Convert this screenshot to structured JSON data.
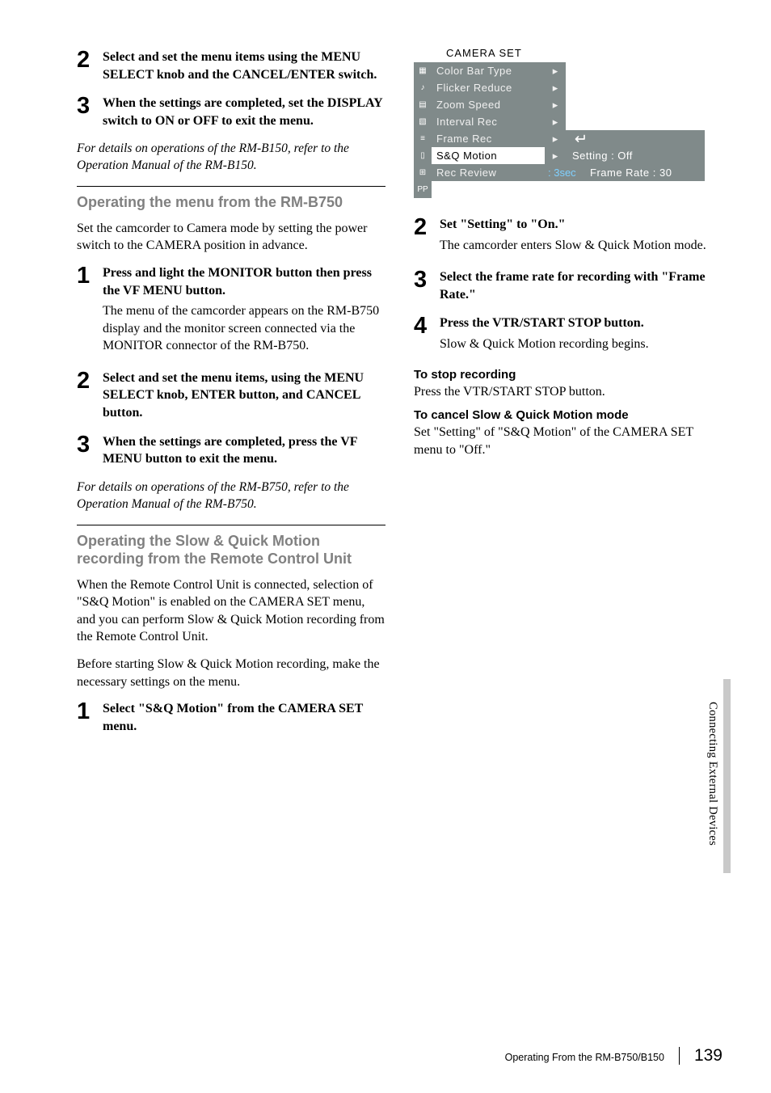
{
  "left": {
    "step2": {
      "num": "2",
      "title": "Select and set the menu items using the MENU SELECT knob and the CANCEL/ENTER switch."
    },
    "step3": {
      "num": "3",
      "title": "When the settings are completed, set the DISPLAY switch to ON or OFF to exit the menu."
    },
    "note1": "For details on operations of the RM-B150, refer to the Operation Manual of the RM-B150.",
    "section2": {
      "title": "Operating the menu from the RM-B750"
    },
    "intro2": "Set the camcorder to Camera mode by setting the power switch to the CAMERA position in advance.",
    "s2step1": {
      "num": "1",
      "title": "Press and light the MONITOR button then press the VF MENU button.",
      "desc": "The menu of the camcorder appears on the RM-B750 display and the monitor screen connected via the MONITOR connector of the RM-B750."
    },
    "s2step2": {
      "num": "2",
      "title": "Select and set the menu items, using the MENU SELECT knob, ENTER button, and CANCEL button."
    },
    "s2step3": {
      "num": "3",
      "title": "When the settings are completed, press the VF MENU button to exit the menu."
    },
    "note2": "For details on operations of the RM-B750, refer to the Operation Manual of the RM-B750.",
    "section3": {
      "title": "Operating the Slow & Quick Motion recording from the Remote Control Unit"
    },
    "intro3a": "When the Remote Control Unit is connected, selection of \"S&Q Motion\" is enabled on the CAMERA SET menu, and you can perform Slow & Quick Motion recording from the Remote Control Unit.",
    "intro3b": "Before starting Slow & Quick Motion recording, make the necessary settings on the menu.",
    "s3step1": {
      "num": "1",
      "title": "Select \"S&Q Motion\" from the CAMERA SET menu."
    }
  },
  "menu": {
    "title": "CAMERA SET",
    "rows": [
      {
        "icon": "▦",
        "label": "Color Bar Type",
        "arrow": "▸",
        "value": "",
        "selected": false,
        "valueEmpty": true
      },
      {
        "icon": "♪",
        "label": "Flicker Reduce",
        "arrow": "▸",
        "value": "",
        "selected": false,
        "valueEmpty": true
      },
      {
        "icon": "▤",
        "label": "Zoom Speed",
        "arrow": "▸",
        "value": "",
        "selected": false,
        "valueEmpty": true
      },
      {
        "icon": "▧",
        "label": "Interval Rec",
        "arrow": "▸",
        "value": "",
        "selected": false,
        "valueEmpty": true
      },
      {
        "icon": "≡",
        "label": "Frame Rec",
        "arrow": "▸",
        "value": "",
        "selected": false,
        "valueEmpty": false,
        "hasReturn": true
      },
      {
        "icon": "▯",
        "label": "S&Q Motion",
        "arrow": "▸",
        "value": "Setting   : Off",
        "selected": true,
        "valueEmpty": false
      },
      {
        "icon": "⊞",
        "label": "Rec Review",
        "arrow": ":",
        "arrowVal": "3sec",
        "value": "Frame Rate : 30",
        "selected": false,
        "valueEmpty": false
      },
      {
        "icon": "PP",
        "label": "",
        "arrow": "",
        "value": "",
        "selected": false,
        "valueEmpty": true,
        "lastRow": true
      }
    ]
  },
  "right": {
    "step2": {
      "num": "2",
      "title": "Set \"Setting\" to \"On.\"",
      "desc": "The camcorder enters Slow & Quick Motion mode."
    },
    "step3": {
      "num": "3",
      "title": "Select the frame rate for recording with \"Frame Rate.\""
    },
    "step4": {
      "num": "4",
      "title": "Press the VTR/START STOP button.",
      "desc": "Slow & Quick Motion recording begins."
    },
    "sub1": {
      "heading": "To stop recording",
      "text": "Press the VTR/START STOP button."
    },
    "sub2": {
      "heading": "To cancel Slow & Quick Motion mode",
      "text": "Set \"Setting\" of \"S&Q Motion\" of the CAMERA SET menu to \"Off.\""
    }
  },
  "sideTab": "Connecting External Devices",
  "footer": {
    "title": "Operating From the RM-B750/B150",
    "page": "139"
  }
}
